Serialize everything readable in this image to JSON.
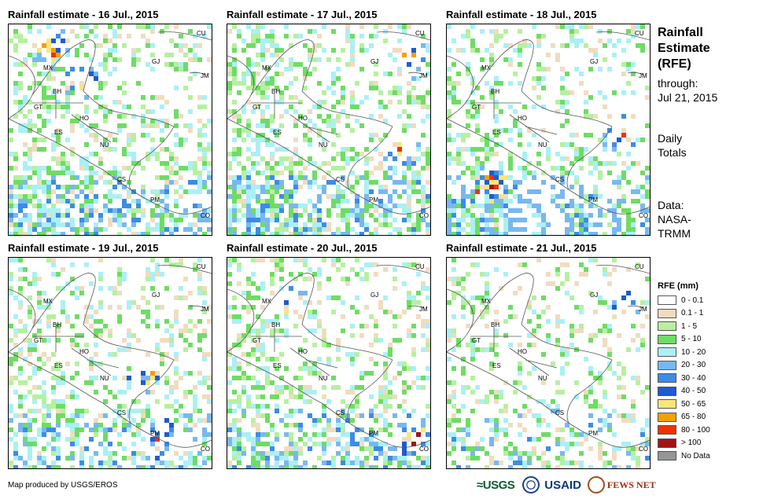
{
  "panels": [
    {
      "title": "Rainfall estimate - 16 Jul., 2015",
      "seed": 11,
      "wet": 0.55,
      "heavy": [
        [
          0.25,
          0.35
        ],
        [
          0.1,
          0.2
        ]
      ]
    },
    {
      "title": "Rainfall estimate - 17 Jul., 2015",
      "seed": 23,
      "wet": 0.6,
      "heavy": [
        [
          0.15,
          0.9
        ],
        [
          0.6,
          0.85
        ]
      ]
    },
    {
      "title": "Rainfall estimate - 18 Jul., 2015",
      "seed": 37,
      "wet": 0.62,
      "heavy": [
        [
          0.75,
          0.2
        ],
        [
          0.5,
          0.85
        ]
      ]
    },
    {
      "title": "Rainfall estimate - 19 Jul., 2015",
      "seed": 41,
      "wet": 0.45,
      "heavy": [
        [
          0.85,
          0.75
        ],
        [
          0.55,
          0.65
        ]
      ]
    },
    {
      "title": "Rainfall estimate - 20 Jul., 2015",
      "seed": 53,
      "wet": 0.48,
      "heavy": [
        [
          0.85,
          0.9
        ],
        [
          0.2,
          0.3
        ]
      ]
    },
    {
      "title": "Rainfall estimate - 21 Jul., 2015",
      "seed": 67,
      "wet": 0.35,
      "heavy": [
        [
          0.2,
          0.85
        ]
      ]
    }
  ],
  "country_labels": [
    "CU",
    "MX",
    "GJ",
    "JM",
    "BH",
    "GT",
    "HO",
    "ES",
    "NU",
    "CS",
    "PM",
    "CO"
  ],
  "side": {
    "title_lines": [
      "Rainfall",
      "Estimate",
      "(RFE)"
    ],
    "through_label": "through:",
    "through_date": "Jul 21, 2015",
    "daily_lines": [
      "Daily",
      "Totals"
    ],
    "data_lines": [
      "Data:",
      "NASA-",
      "TRMM"
    ]
  },
  "legend": {
    "title": "RFE (mm)",
    "items": [
      {
        "label": "0 - 0.1",
        "color": "#ffffff"
      },
      {
        "label": "0.1 - 1",
        "color": "#f0dcc0"
      },
      {
        "label": "1 - 5",
        "color": "#b6f0a0"
      },
      {
        "label": "5 - 10",
        "color": "#6fdc64"
      },
      {
        "label": "10 - 20",
        "color": "#aaf0f5"
      },
      {
        "label": "20 - 30",
        "color": "#78b8f0"
      },
      {
        "label": "30 - 40",
        "color": "#3c8ce6"
      },
      {
        "label": "40 - 50",
        "color": "#1e5ad2"
      },
      {
        "label": "50 - 65",
        "color": "#fae678"
      },
      {
        "label": "65 - 80",
        "color": "#f5a000"
      },
      {
        "label": "80 - 100",
        "color": "#f03200"
      },
      {
        "label": "> 100",
        "color": "#a01414"
      },
      {
        "label": "No Data",
        "color": "#969696"
      }
    ]
  },
  "footer": "Map produced by USGS/EROS",
  "logos": {
    "usgs": "≈USGS",
    "usaid": "USAID",
    "fews": "FEWS NET"
  }
}
